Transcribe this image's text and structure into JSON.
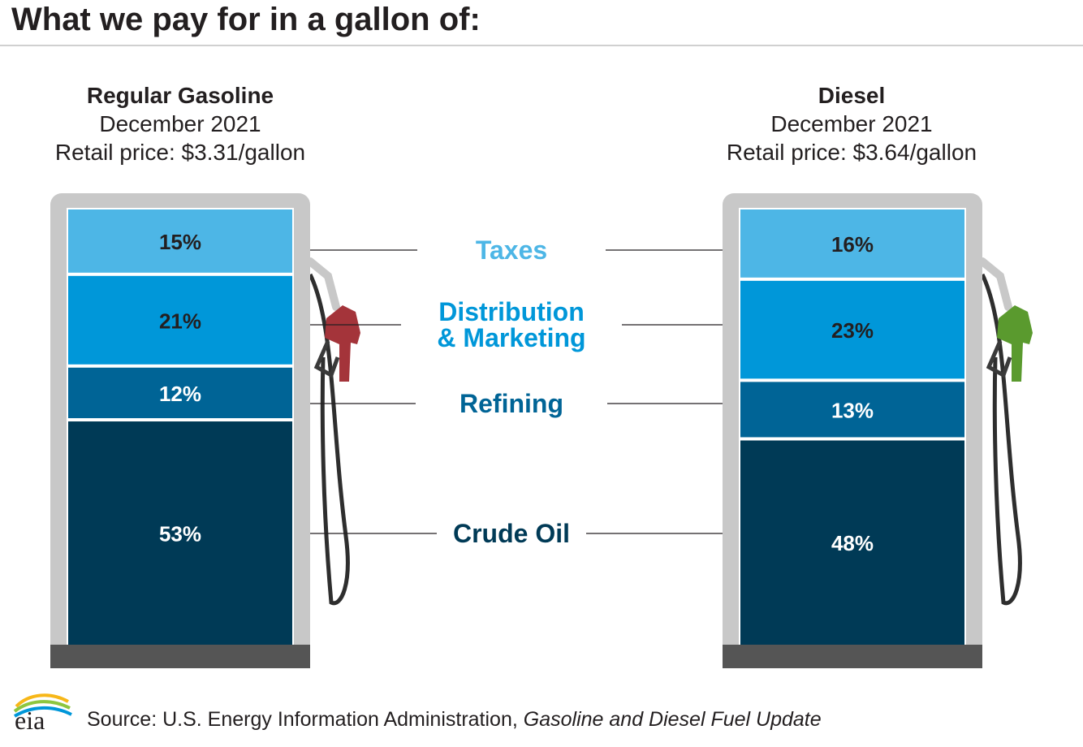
{
  "title": "What we pay for in a gallon of:",
  "colors": {
    "taxes": "#4db6e6",
    "distribution": "#0097d9",
    "refining": "#006496",
    "crude": "#003a56",
    "pump_frame": "#c8c8c8",
    "pump_base": "#555555",
    "nozzle_gasoline": "#a4343a",
    "nozzle_diesel": "#5a9a2e"
  },
  "chart_data": {
    "type": "bar",
    "stacked": true,
    "categories": [
      "Taxes",
      "Distribution & Marketing",
      "Refining",
      "Crude Oil"
    ],
    "category_lines": [
      [
        "Taxes"
      ],
      [
        "Distribution",
        "& Marketing"
      ],
      [
        "Refining"
      ],
      [
        "Crude Oil"
      ]
    ],
    "series": [
      {
        "name": "Regular Gasoline",
        "period": "December 2021",
        "price_label": "Retail price: $3.31/gallon",
        "values": [
          15,
          21,
          12,
          53
        ],
        "labels": [
          "15%",
          "21%",
          "12%",
          "53%"
        ]
      },
      {
        "name": "Diesel",
        "period": "December 2021",
        "price_label": "Retail price: $3.64/gallon",
        "values": [
          16,
          23,
          13,
          48
        ],
        "labels": [
          "16%",
          "23%",
          "13%",
          "48%"
        ]
      }
    ],
    "unit": "%"
  },
  "source": {
    "prefix": "Source: U.S. Energy Information Administration,",
    "publication": "Gasoline and Diesel Fuel Update"
  },
  "logo_text": "eia"
}
